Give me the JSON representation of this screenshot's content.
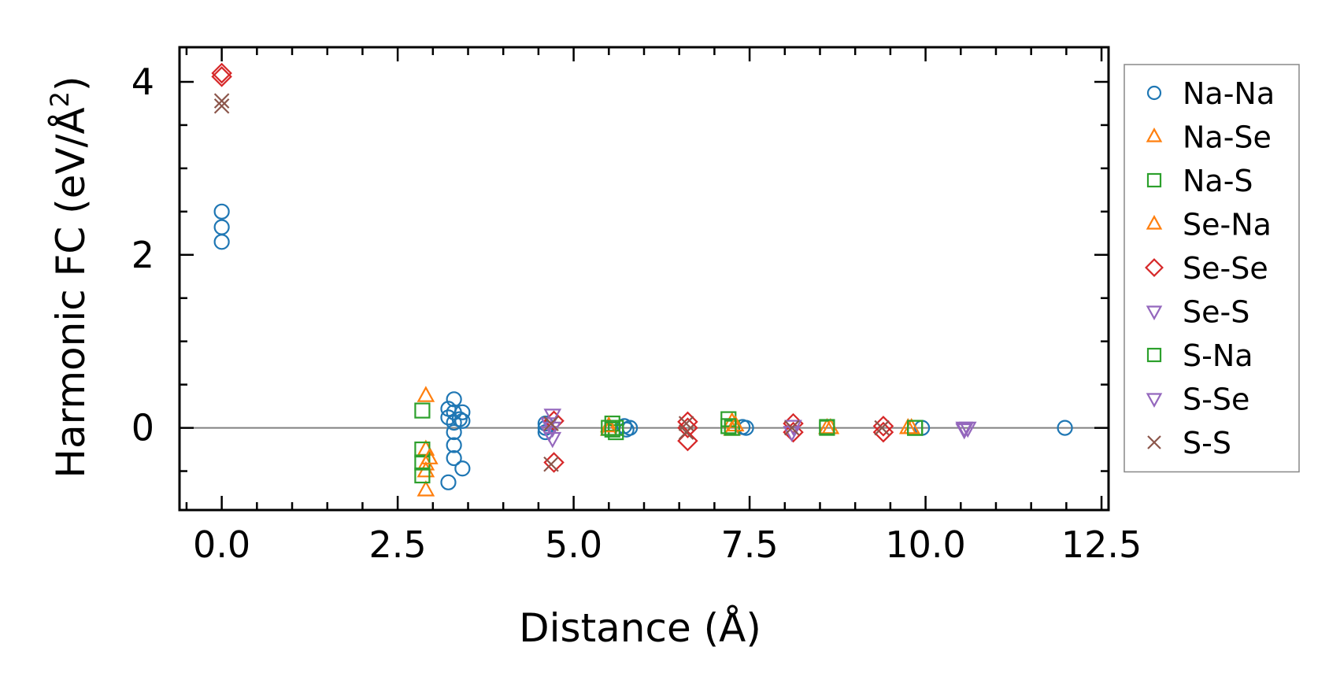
{
  "chart_data": {
    "type": "scatter",
    "xlabel": "Distance (Å)",
    "ylabel_main": "Harmonic FC (eV/Å",
    "ylabel_sup": "2",
    "ylabel_close": ")",
    "xlim": [
      -0.6,
      12.6
    ],
    "ylim": [
      -0.95,
      4.4
    ],
    "x_ticks": [
      {
        "value": 0.0,
        "label": "0.0"
      },
      {
        "value": 2.5,
        "label": "2.5"
      },
      {
        "value": 5.0,
        "label": "5.0"
      },
      {
        "value": 7.5,
        "label": "7.5"
      },
      {
        "value": 10.0,
        "label": "10.0"
      },
      {
        "value": 12.5,
        "label": "12.5"
      }
    ],
    "y_ticks": [
      {
        "value": 0,
        "label": "0"
      },
      {
        "value": 2,
        "label": "2"
      },
      {
        "value": 4,
        "label": "4"
      }
    ],
    "zero_line": true,
    "grid": false,
    "legend_position": "right",
    "series": [
      {
        "name": "Na-Na",
        "marker": "circle",
        "color": "#1f77b4",
        "points": [
          [
            0,
            2.5
          ],
          [
            0,
            2.32
          ],
          [
            0,
            2.15
          ],
          [
            3.22,
            -0.63
          ],
          [
            3.22,
            0.22
          ],
          [
            3.22,
            0.12
          ],
          [
            3.3,
            0.33
          ],
          [
            3.3,
            0.18
          ],
          [
            3.3,
            0.06
          ],
          [
            3.3,
            -0.05
          ],
          [
            3.3,
            -0.2
          ],
          [
            3.3,
            -0.35
          ],
          [
            3.38,
            0.1
          ],
          [
            3.42,
            0.18
          ],
          [
            3.42,
            0.08
          ],
          [
            3.42,
            -0.47
          ],
          [
            4.6,
            0.05
          ],
          [
            4.6,
            0.0
          ],
          [
            4.6,
            -0.05
          ],
          [
            5.72,
            0.02
          ],
          [
            5.75,
            -0.02
          ],
          [
            5.8,
            0.0
          ],
          [
            7.4,
            0.01
          ],
          [
            7.45,
            0.0
          ],
          [
            9.95,
            0.0
          ],
          [
            11.98,
            0.0
          ]
        ]
      },
      {
        "name": "Na-Se",
        "marker": "triangle-up",
        "color": "#ff7f0e",
        "points": [
          [
            2.9,
            0.37
          ],
          [
            2.9,
            -0.25
          ],
          [
            2.9,
            -0.42
          ],
          [
            2.9,
            -0.72
          ],
          [
            2.9,
            -0.5
          ],
          [
            5.5,
            -0.02
          ],
          [
            7.25,
            0.07
          ],
          [
            7.25,
            -0.02
          ],
          [
            8.6,
            0.0
          ],
          [
            9.8,
            0.0
          ]
        ]
      },
      {
        "name": "Na-S",
        "marker": "square",
        "color": "#2ca02c",
        "points": [
          [
            2.85,
            0.2
          ],
          [
            2.85,
            -0.25
          ],
          [
            2.85,
            -0.4
          ],
          [
            2.85,
            -0.55
          ],
          [
            5.55,
            0.05
          ],
          [
            5.6,
            0.0
          ],
          [
            5.6,
            -0.05
          ],
          [
            7.2,
            0.1
          ],
          [
            7.25,
            0.0
          ],
          [
            8.6,
            0.0
          ],
          [
            9.85,
            0.0
          ]
        ]
      },
      {
        "name": "Se-Na",
        "marker": "triangle-up",
        "color": "#ff7f0e",
        "points": [
          [
            2.95,
            -0.35
          ],
          [
            5.5,
            0.02
          ],
          [
            7.3,
            0.03
          ],
          [
            8.65,
            0.0
          ],
          [
            9.75,
            0.0
          ]
        ]
      },
      {
        "name": "Se-Se",
        "marker": "diamond",
        "color": "#d62728",
        "points": [
          [
            0,
            4.1
          ],
          [
            0,
            4.06
          ],
          [
            4.72,
            -0.4
          ],
          [
            4.72,
            0.08
          ],
          [
            6.62,
            0.07
          ],
          [
            6.62,
            -0.15
          ],
          [
            6.62,
            0.0
          ],
          [
            8.12,
            0.05
          ],
          [
            8.12,
            -0.05
          ],
          [
            9.4,
            0.02
          ],
          [
            9.4,
            -0.05
          ]
        ]
      },
      {
        "name": "Se-S",
        "marker": "triangle-down",
        "color": "#9467bd",
        "points": [
          [
            4.7,
            0.15
          ],
          [
            4.7,
            0.0
          ],
          [
            4.7,
            -0.12
          ],
          [
            8.12,
            0.02
          ],
          [
            10.55,
            0.0
          ],
          [
            10.55,
            -0.02
          ]
        ]
      },
      {
        "name": "S-Na",
        "marker": "square",
        "color": "#2ca02c",
        "points": [
          [
            5.5,
            0.0
          ],
          [
            5.55,
            -0.02
          ],
          [
            7.2,
            0.02
          ],
          [
            8.6,
            0.01
          ],
          [
            9.85,
            0.0
          ]
        ]
      },
      {
        "name": "S-Se",
        "marker": "triangle-down",
        "color": "#9467bd",
        "points": [
          [
            4.65,
            0.05
          ],
          [
            4.65,
            -0.05
          ],
          [
            8.1,
            -0.05
          ],
          [
            10.6,
            0.0
          ]
        ]
      },
      {
        "name": "S-S",
        "marker": "x",
        "color": "#8c564b",
        "points": [
          [
            0,
            3.78
          ],
          [
            0,
            3.72
          ],
          [
            4.68,
            -0.42
          ],
          [
            4.68,
            0.05
          ],
          [
            6.6,
            0.05
          ],
          [
            6.6,
            -0.05
          ],
          [
            8.1,
            0.0
          ],
          [
            9.38,
            0.0
          ]
        ]
      }
    ]
  }
}
